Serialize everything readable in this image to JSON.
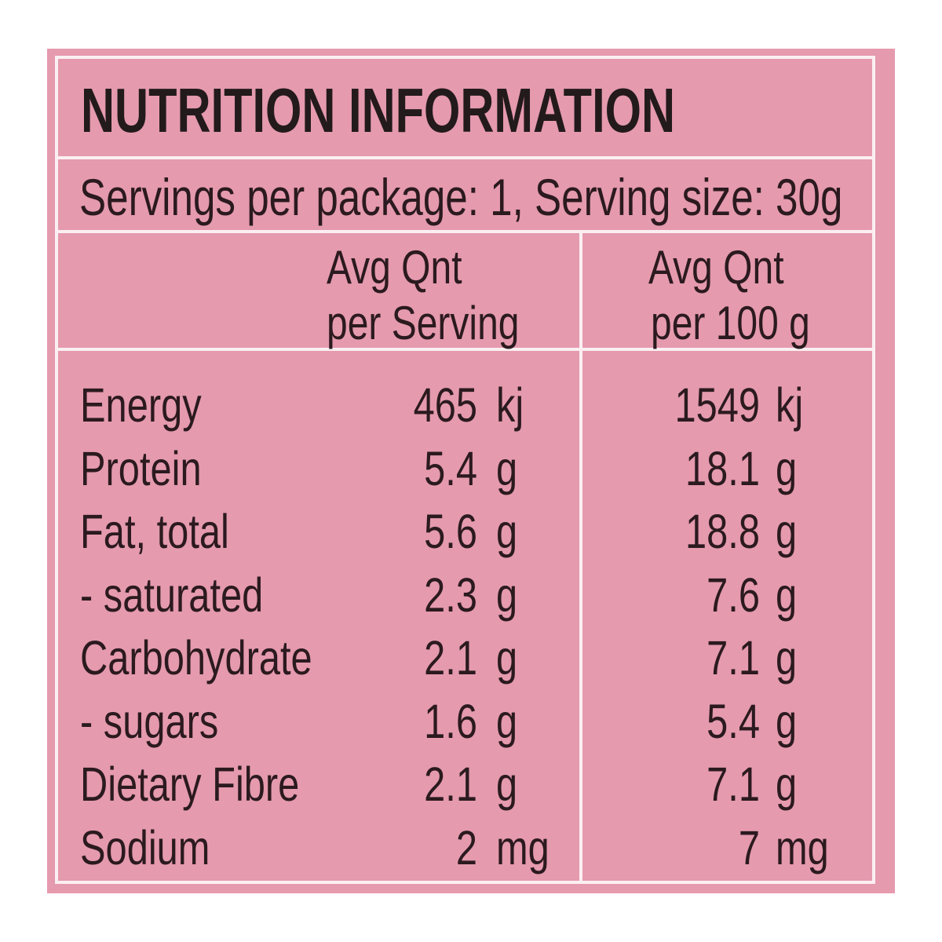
{
  "panel": {
    "title": "NUTRITION INFORMATION",
    "serving_info": "Servings per package: 1, Serving size: 30g",
    "columns": [
      {
        "line1": "Avg Qnt",
        "line2": "per Serving"
      },
      {
        "line1": "Avg Qnt",
        "line2": "per 100 g"
      }
    ],
    "rows": [
      {
        "label": "Energy",
        "per_serving": {
          "value": "465",
          "unit": "kj"
        },
        "per_100g": {
          "value": "1549",
          "unit": "kj"
        }
      },
      {
        "label": "Protein",
        "per_serving": {
          "value": "5.4",
          "unit": "g"
        },
        "per_100g": {
          "value": "18.1",
          "unit": "g"
        }
      },
      {
        "label": "Fat, total",
        "per_serving": {
          "value": "5.6",
          "unit": "g"
        },
        "per_100g": {
          "value": "18.8",
          "unit": "g"
        }
      },
      {
        "label": "- saturated",
        "per_serving": {
          "value": "2.3",
          "unit": "g"
        },
        "per_100g": {
          "value": "7.6",
          "unit": "g"
        }
      },
      {
        "label": "Carbohydrate",
        "per_serving": {
          "value": "2.1",
          "unit": "g"
        },
        "per_100g": {
          "value": "7.1",
          "unit": "g"
        }
      },
      {
        "label": "- sugars",
        "per_serving": {
          "value": "1.6",
          "unit": "g"
        },
        "per_100g": {
          "value": "5.4",
          "unit": "g"
        }
      },
      {
        "label": "Dietary Fibre",
        "per_serving": {
          "value": "2.1",
          "unit": "g"
        },
        "per_100g": {
          "value": "7.1",
          "unit": "g"
        }
      },
      {
        "label": "Sodium",
        "per_serving": {
          "value": "2",
          "unit": "mg"
        },
        "per_100g": {
          "value": "7",
          "unit": "mg"
        }
      }
    ]
  },
  "colors": {
    "background": "#e59aae",
    "lines": "#fbeff2",
    "text": "#2b1a1f"
  }
}
